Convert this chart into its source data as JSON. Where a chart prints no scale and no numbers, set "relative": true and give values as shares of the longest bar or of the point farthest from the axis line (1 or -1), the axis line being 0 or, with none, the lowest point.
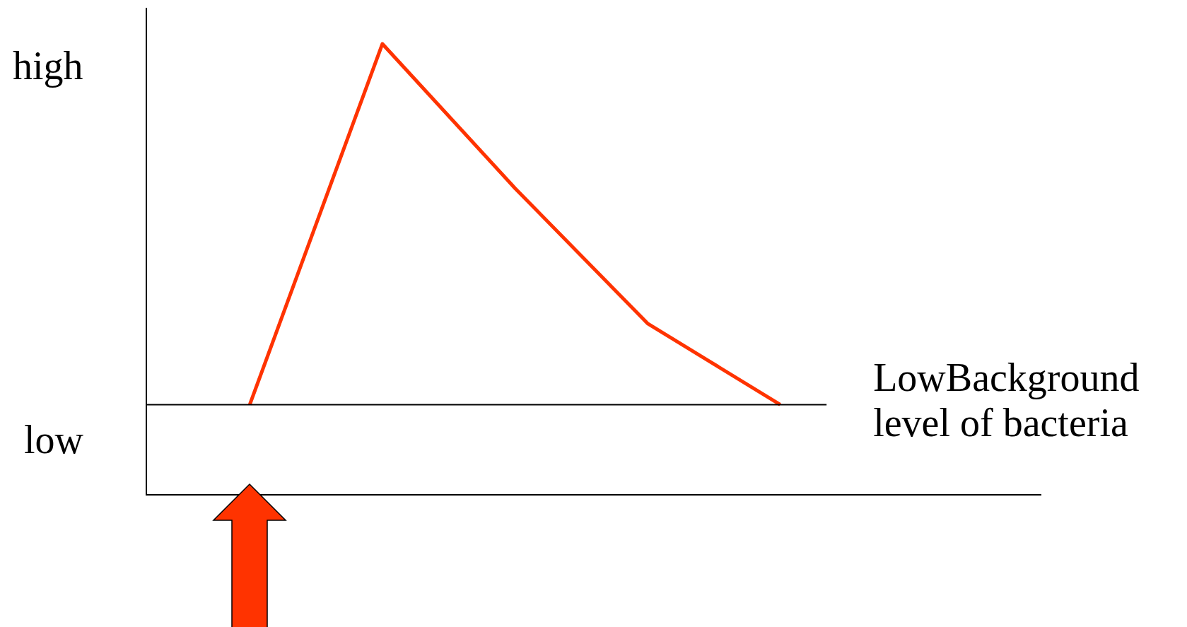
{
  "chart_data": {
    "type": "line",
    "relative": true,
    "categories": [
      null,
      null,
      null,
      null,
      null
    ],
    "series": [
      {
        "color": "#ff3300",
        "values": [
          0.2,
          1,
          0.68,
          0.38,
          0.2
        ]
      }
    ],
    "ref_lines": [
      {
        "axis": "y",
        "value": 0.2,
        "label": "LowBackground level of bacteria",
        "color": "#000000"
      }
    ],
    "annotations": [
      "high",
      "low"
    ],
    "legend": false,
    "marker": "none"
  }
}
